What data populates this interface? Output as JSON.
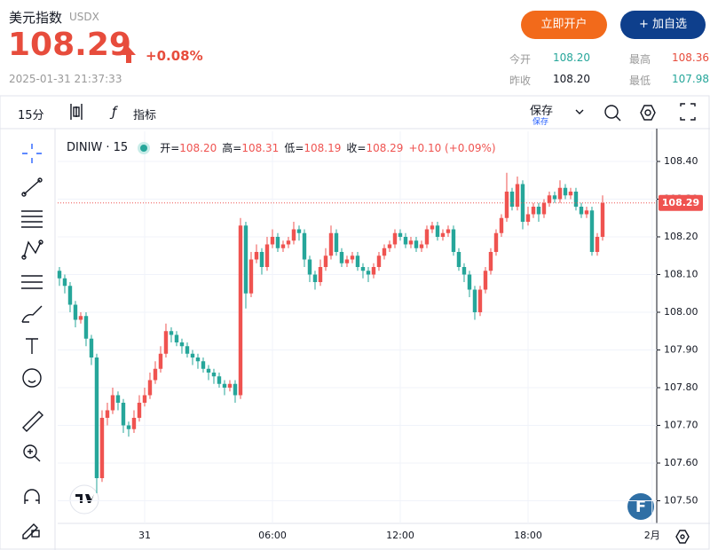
{
  "header": {
    "name": "美元指数",
    "code": "USDX",
    "price": "108.29",
    "change": "+0.08%",
    "datetime": "2025-01-31 21:37:33",
    "open_account": "立即开户",
    "add_watchlist": "+ 加自选",
    "stats": [
      {
        "label": "今开",
        "value": "108.20"
      },
      {
        "label": "最高",
        "value": "108.36"
      },
      {
        "label": "昨收",
        "value": "108.20"
      },
      {
        "label": "最低",
        "value": "107.98"
      }
    ]
  },
  "toolbar": {
    "interval": "15分",
    "indicators": "指标",
    "save": "保存",
    "save_sub": "保存"
  },
  "branding": {
    "logo": "F"
  },
  "chart_data": {
    "type": "candlestick",
    "symbol": "DINIW · 15",
    "legend": [
      {
        "label": "开=",
        "value": "108.20"
      },
      {
        "label": "高=",
        "value": "108.31"
      },
      {
        "label": "低=",
        "value": "108.19"
      },
      {
        "label": "收=",
        "value": "108.29"
      }
    ],
    "change": "+0.10 (+0.09%)",
    "open": [
      108.11,
      108.09,
      108.07,
      108.02,
      107.98,
      107.99,
      107.93,
      107.88,
      107.56,
      107.72,
      107.74,
      107.78,
      107.76,
      107.7,
      107.69,
      107.72,
      107.76,
      107.78,
      107.82,
      107.85,
      107.89,
      107.95,
      107.94,
      107.92,
      107.91,
      107.89,
      107.88,
      107.87,
      107.85,
      107.84,
      107.83,
      107.81,
      107.8,
      107.81,
      107.78,
      108.23,
      108.05,
      108.14,
      108.16,
      108.12,
      108.18,
      108.2,
      108.17,
      108.18,
      108.19,
      108.22,
      108.21,
      108.14,
      108.1,
      108.08,
      108.12,
      108.15,
      108.21,
      108.16,
      108.13,
      108.14,
      108.15,
      108.12,
      108.11,
      108.1,
      108.12,
      108.15,
      108.17,
      108.18,
      108.21,
      108.2,
      108.18,
      108.19,
      108.17,
      108.18,
      108.22,
      108.23,
      108.2,
      108.21,
      108.22,
      108.16,
      108.12,
      108.1,
      108.06,
      108.0,
      108.06,
      108.11,
      108.16,
      108.21,
      108.25,
      108.32,
      108.28,
      108.34,
      108.24,
      108.26,
      108.28,
      108.26,
      108.29,
      108.31,
      108.3,
      108.33,
      108.31,
      108.32,
      108.28,
      108.26,
      108.27,
      108.16,
      108.2
    ],
    "high": [
      108.12,
      108.1,
      108.08,
      108.03,
      108.0,
      108.0,
      107.94,
      107.89,
      107.74,
      107.76,
      107.8,
      107.79,
      107.77,
      107.71,
      107.74,
      107.78,
      107.8,
      107.84,
      107.87,
      107.91,
      107.97,
      107.96,
      107.95,
      107.93,
      107.92,
      107.9,
      107.89,
      107.88,
      107.86,
      107.85,
      107.84,
      107.82,
      107.82,
      107.82,
      108.25,
      108.24,
      108.16,
      108.18,
      108.17,
      108.2,
      108.22,
      108.21,
      108.19,
      108.2,
      108.24,
      108.23,
      108.22,
      108.15,
      108.11,
      108.14,
      108.17,
      108.23,
      108.22,
      108.17,
      108.15,
      108.16,
      108.16,
      108.13,
      108.12,
      108.13,
      108.16,
      108.18,
      108.19,
      108.22,
      108.22,
      108.21,
      108.2,
      108.2,
      108.19,
      108.23,
      108.24,
      108.24,
      108.22,
      108.23,
      108.23,
      108.17,
      108.13,
      108.11,
      108.07,
      108.07,
      108.12,
      108.17,
      108.22,
      108.26,
      108.37,
      108.33,
      108.36,
      108.35,
      108.28,
      108.29,
      108.29,
      108.3,
      108.32,
      108.32,
      108.35,
      108.34,
      108.33,
      108.33,
      108.29,
      108.28,
      108.28,
      108.21,
      108.31
    ],
    "low": [
      108.07,
      108.05,
      108.0,
      107.96,
      107.97,
      107.91,
      107.86,
      107.52,
      107.55,
      107.7,
      107.73,
      107.74,
      107.68,
      107.67,
      107.68,
      107.71,
      107.75,
      107.77,
      107.81,
      107.84,
      107.88,
      107.92,
      107.91,
      107.89,
      107.88,
      107.86,
      107.85,
      107.84,
      107.82,
      107.81,
      107.8,
      107.78,
      107.79,
      107.76,
      107.77,
      108.01,
      108.04,
      108.13,
      108.1,
      108.11,
      108.17,
      108.16,
      108.16,
      108.17,
      108.18,
      108.19,
      108.12,
      108.08,
      108.06,
      108.07,
      108.11,
      108.14,
      108.15,
      108.12,
      108.12,
      108.13,
      108.11,
      108.09,
      108.08,
      108.09,
      108.11,
      108.14,
      108.16,
      108.17,
      108.19,
      108.17,
      108.17,
      108.16,
      108.16,
      108.17,
      108.21,
      108.19,
      108.19,
      108.2,
      108.15,
      108.11,
      108.08,
      108.04,
      107.98,
      107.99,
      108.05,
      108.1,
      108.15,
      108.2,
      108.24,
      108.27,
      108.27,
      108.22,
      108.23,
      108.25,
      108.24,
      108.25,
      108.28,
      108.29,
      108.29,
      108.3,
      108.3,
      108.27,
      108.25,
      108.25,
      108.15,
      108.15,
      108.19
    ],
    "close": [
      108.09,
      108.07,
      108.02,
      107.98,
      107.99,
      107.93,
      107.88,
      107.56,
      107.72,
      107.74,
      107.78,
      107.76,
      107.7,
      107.69,
      107.72,
      107.76,
      107.78,
      107.82,
      107.85,
      107.89,
      107.95,
      107.94,
      107.92,
      107.91,
      107.89,
      107.88,
      107.87,
      107.85,
      107.84,
      107.83,
      107.81,
      107.8,
      107.81,
      107.78,
      108.23,
      108.05,
      108.14,
      108.16,
      108.12,
      108.18,
      108.2,
      108.17,
      108.18,
      108.19,
      108.22,
      108.21,
      108.14,
      108.1,
      108.08,
      108.12,
      108.15,
      108.21,
      108.16,
      108.13,
      108.14,
      108.15,
      108.12,
      108.11,
      108.1,
      108.12,
      108.15,
      108.17,
      108.18,
      108.21,
      108.2,
      108.18,
      108.19,
      108.17,
      108.18,
      108.22,
      108.23,
      108.2,
      108.21,
      108.22,
      108.16,
      108.12,
      108.1,
      108.06,
      108.0,
      108.06,
      108.11,
      108.16,
      108.21,
      108.25,
      108.32,
      108.28,
      108.34,
      108.24,
      108.26,
      108.28,
      108.26,
      108.29,
      108.31,
      108.3,
      108.33,
      108.31,
      108.32,
      108.28,
      108.26,
      108.27,
      108.16,
      108.2,
      108.29
    ],
    "up_color": "#ef5350",
    "down_color": "#26a69a",
    "ylim": [
      107.44,
      108.48
    ],
    "yticks": [
      {
        "value": 107.5,
        "label": "107.50"
      },
      {
        "value": 107.6,
        "label": "107.60"
      },
      {
        "value": 107.7,
        "label": "107.70"
      },
      {
        "value": 107.8,
        "label": "107.80"
      },
      {
        "value": 107.9,
        "label": "107.90"
      },
      {
        "value": 108,
        "label": "108.00"
      },
      {
        "value": 108.1,
        "label": "108.10"
      },
      {
        "value": 108.2,
        "label": "108.20"
      },
      {
        "value": 108.3,
        "label": "108.30"
      },
      {
        "value": 108.4,
        "label": "108.40"
      }
    ],
    "xlim": [
      -0.33,
      112.17
    ],
    "xticks": [
      {
        "value": 16,
        "label": "31"
      },
      {
        "value": 40,
        "label": "06:00"
      },
      {
        "value": 64,
        "label": "12:00"
      },
      {
        "value": 88,
        "label": "18:00"
      },
      {
        "value": 111.3,
        "label": "2月"
      }
    ],
    "last_price": 108.29,
    "grid": true
  }
}
